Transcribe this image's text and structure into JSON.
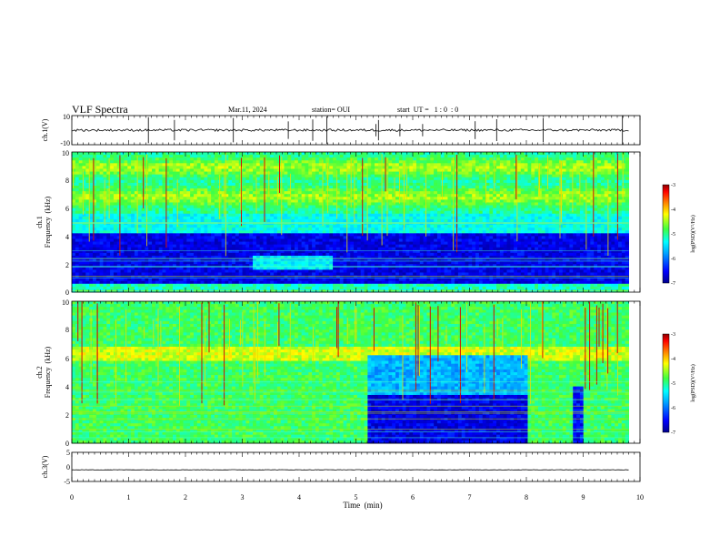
{
  "header": {
    "title": "VLF Spectra",
    "date": "Mar.11, 2024",
    "station": "station= OUI",
    "start_ut": "start  UT =   1 : 0  : 0"
  },
  "chart_data": [
    {
      "type": "line",
      "panel": "ch1-waveform",
      "ylabel": "ch.1(V)",
      "ylim": [
        -10,
        10
      ],
      "yticks": [
        "10",
        "-10"
      ],
      "baseline": 0,
      "xlim": [
        0,
        10
      ]
    },
    {
      "type": "heatmap",
      "panel": "ch1-spectrogram",
      "ylabel_channel": "ch.1",
      "ylabel": "Frequency  (kHz)",
      "ylim": [
        0,
        10
      ],
      "yticks": [
        "0",
        "2",
        "4",
        "6",
        "8",
        "10"
      ],
      "xlim": [
        0,
        10
      ],
      "data_end_min": 9.8,
      "colorbar": {
        "label": "log(PSD)(V²/Hz)",
        "ticks": [
          "-3",
          "-4",
          "-5",
          "-6",
          "-7"
        ],
        "range": [
          -7,
          -3
        ]
      }
    },
    {
      "type": "heatmap",
      "panel": "ch2-spectrogram",
      "ylabel_channel": "ch.2",
      "ylabel": "Frequency  (kHz)",
      "ylim": [
        0,
        10
      ],
      "yticks": [
        "0",
        "2",
        "4",
        "6",
        "8",
        "10"
      ],
      "xlim": [
        0,
        10
      ],
      "data_end_min": 9.8,
      "colorbar": {
        "label": "log(PSD)(V²/Hz)",
        "ticks": [
          "-3",
          "-4",
          "-5",
          "-6",
          "-7"
        ],
        "range": [
          -7,
          -3
        ]
      }
    },
    {
      "type": "line",
      "panel": "ch3-waveform",
      "ylabel": "ch.3(V)",
      "ylim": [
        -5,
        5
      ],
      "yticks": [
        "5",
        "0",
        "-5"
      ],
      "baseline": -1,
      "xlim": [
        0,
        10
      ],
      "xlabel": "Time  (min)",
      "xticks": [
        "0",
        "1",
        "2",
        "3",
        "4",
        "5",
        "6",
        "7",
        "8",
        "9",
        "10"
      ]
    }
  ],
  "colors": {
    "colormap": [
      "#00008b",
      "#0000ff",
      "#00a0ff",
      "#00ffff",
      "#40ff40",
      "#ffff00",
      "#ff8000",
      "#ff0000",
      "#8b0000"
    ]
  }
}
